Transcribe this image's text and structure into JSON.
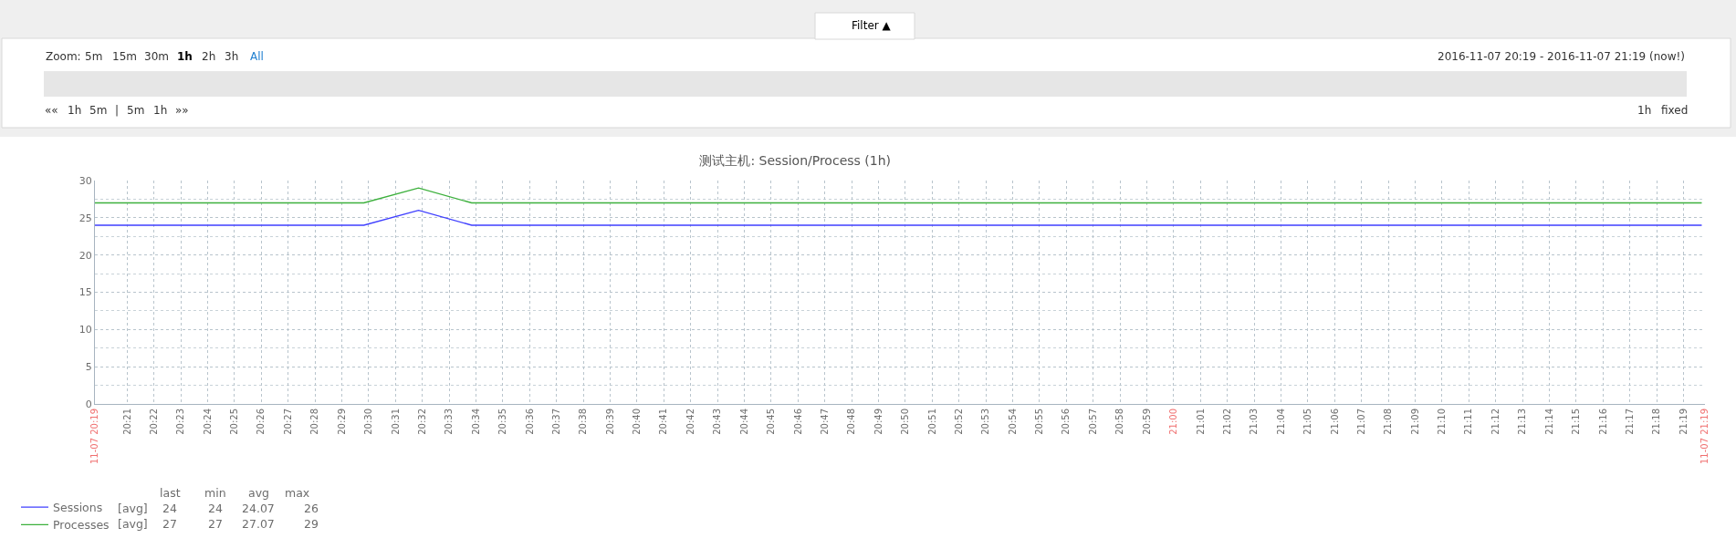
{
  "chart_data": {
    "type": "line",
    "title": "测试主机: Session/Process (1h)",
    "x": [
      20.33,
      20.497,
      20.531,
      20.564,
      21.328
    ],
    "series": [
      {
        "name": "Sessions",
        "color": "#3f3fff",
        "values": [
          24,
          24,
          26,
          24,
          24
        ]
      },
      {
        "name": "Processes",
        "color": "#3cb03c",
        "values": [
          27,
          27,
          29,
          27,
          27
        ]
      }
    ],
    "xlim": [
      20.33,
      21.33
    ],
    "xticks": [
      {
        "value": 20.33,
        "label": "11-07 20:19"
      },
      {
        "value": 20.35,
        "label": "20:21"
      },
      {
        "value": 20.3667,
        "label": "20:22"
      },
      {
        "value": 20.3833,
        "label": "20:23"
      },
      {
        "value": 20.4,
        "label": "20:24"
      },
      {
        "value": 20.4167,
        "label": "20:25"
      },
      {
        "value": 20.4333,
        "label": "20:26"
      },
      {
        "value": 20.45,
        "label": "20:27"
      },
      {
        "value": 20.4667,
        "label": "20:28"
      },
      {
        "value": 20.4833,
        "label": "20:29"
      },
      {
        "value": 20.5,
        "label": "20:30"
      },
      {
        "value": 20.5167,
        "label": "20:31"
      },
      {
        "value": 20.5333,
        "label": "20:32"
      },
      {
        "value": 20.55,
        "label": "20:33"
      },
      {
        "value": 20.5667,
        "label": "20:34"
      },
      {
        "value": 20.5833,
        "label": "20:35"
      },
      {
        "value": 20.6,
        "label": "20:36"
      },
      {
        "value": 20.6167,
        "label": "20:37"
      },
      {
        "value": 20.6333,
        "label": "20:38"
      },
      {
        "value": 20.65,
        "label": "20:39"
      },
      {
        "value": 20.6667,
        "label": "20:40"
      },
      {
        "value": 20.6833,
        "label": "20:41"
      },
      {
        "value": 20.7,
        "label": "20:42"
      },
      {
        "value": 20.7167,
        "label": "20:43"
      },
      {
        "value": 20.7333,
        "label": "20:44"
      },
      {
        "value": 20.75,
        "label": "20:45"
      },
      {
        "value": 20.7667,
        "label": "20:46"
      },
      {
        "value": 20.7833,
        "label": "20:47"
      },
      {
        "value": 20.8,
        "label": "20:48"
      },
      {
        "value": 20.8167,
        "label": "20:49"
      },
      {
        "value": 20.8333,
        "label": "20:50"
      },
      {
        "value": 20.85,
        "label": "20:51"
      },
      {
        "value": 20.8667,
        "label": "20:52"
      },
      {
        "value": 20.8833,
        "label": "20:53"
      },
      {
        "value": 20.9,
        "label": "20:54"
      },
      {
        "value": 20.9167,
        "label": "20:55"
      },
      {
        "value": 20.9333,
        "label": "20:56"
      },
      {
        "value": 20.95,
        "label": "20:57"
      },
      {
        "value": 20.9667,
        "label": "20:58"
      },
      {
        "value": 20.9833,
        "label": "20:59"
      },
      {
        "value": 21,
        "label": "21:00"
      },
      {
        "value": 21.0167,
        "label": "21:01"
      },
      {
        "value": 21.0333,
        "label": "21:02"
      },
      {
        "value": 21.05,
        "label": "21:03"
      },
      {
        "value": 21.0667,
        "label": "21:04"
      },
      {
        "value": 21.0833,
        "label": "21:05"
      },
      {
        "value": 21.1,
        "label": "21:06"
      },
      {
        "value": 21.1167,
        "label": "21:07"
      },
      {
        "value": 21.1333,
        "label": "21:08"
      },
      {
        "value": 21.15,
        "label": "21:09"
      },
      {
        "value": 21.1667,
        "label": "21:10"
      },
      {
        "value": 21.1833,
        "label": "21:11"
      },
      {
        "value": 21.2,
        "label": "21:12"
      },
      {
        "value": 21.2167,
        "label": "21:13"
      },
      {
        "value": 21.2333,
        "label": "21:14"
      },
      {
        "value": 21.25,
        "label": "21:15"
      },
      {
        "value": 21.2667,
        "label": "21:16"
      },
      {
        "value": 21.2833,
        "label": "21:17"
      },
      {
        "value": 21.3,
        "label": "21:18"
      },
      {
        "value": 21.3167,
        "label": "21:19"
      },
      {
        "value": 21.33,
        "label": "11-07 21:19"
      }
    ],
    "ylim": [
      0,
      30
    ],
    "yticks": [
      0,
      5,
      10,
      15,
      20,
      25,
      30
    ],
    "grid": true,
    "legend": "bottom left",
    "marker": "none",
    "line_style": "solid",
    "annotations": [
      "Filter ▲",
      "Zoom:",
      "5m",
      "15m",
      "30m",
      "1h",
      "2h",
      "3h",
      "All",
      "2016-11-07 20:19 - 2016-11-07 21:19 (now!)",
      "««",
      "1h",
      "5m",
      "|",
      "5m",
      "1h",
      "»»",
      "1h",
      "fixed",
      "last",
      "min",
      "avg",
      "max",
      "[avg]",
      "24",
      "24",
      "24.07",
      "26",
      "[avg]",
      "27",
      "27",
      "27.07",
      "29"
    ]
  }
}
